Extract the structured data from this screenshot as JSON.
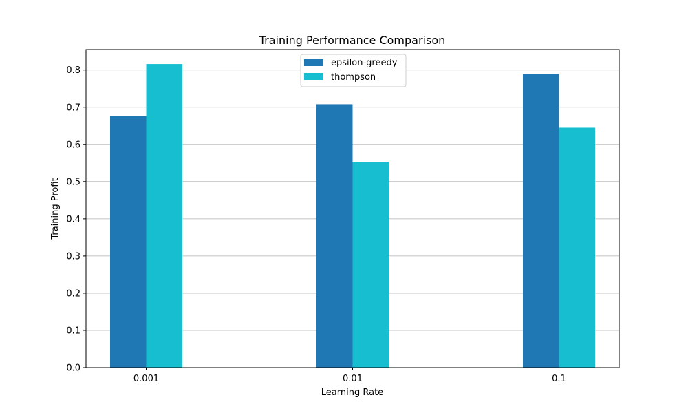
{
  "chart_data": {
    "type": "bar",
    "title": "Training Performance Comparison",
    "xlabel": "Learning Rate",
    "ylabel": "Training Profit",
    "categories": [
      "0.001",
      "0.01",
      "0.1"
    ],
    "series": [
      {
        "name": "epsilon-greedy",
        "color": "#1f77b4",
        "values": [
          0.676,
          0.708,
          0.79
        ]
      },
      {
        "name": "thompson",
        "color": "#17becf",
        "values": [
          0.816,
          0.553,
          0.645
        ]
      }
    ],
    "ylim": [
      0,
      0.855
    ],
    "yticks": [
      "0.0",
      "0.1",
      "0.2",
      "0.3",
      "0.4",
      "0.5",
      "0.6",
      "0.7",
      "0.8"
    ],
    "grid": "horizontal",
    "legend_position": "top-center"
  }
}
